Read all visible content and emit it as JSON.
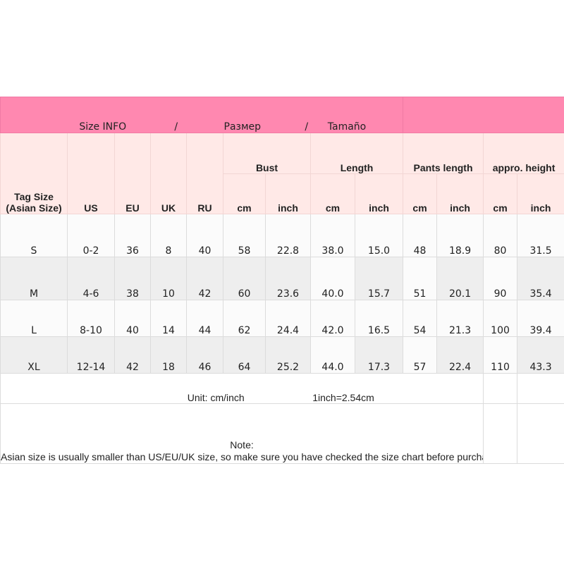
{
  "banner": {
    "title_en": "Size INFO",
    "sep1": "/",
    "title_ru": "Размер",
    "sep2": "/",
    "title_es": "Tamaño"
  },
  "header": {
    "tag_size": "Tag Size",
    "tag_size_sub": "(Asian Size)",
    "us": "US",
    "eu": "EU",
    "uk": "UK",
    "ru": "RU",
    "groups": [
      "Bust",
      "Length",
      "Pants length",
      "appro. height"
    ],
    "units": [
      "cm",
      "inch",
      "cm",
      "inch",
      "cm",
      "inch",
      "cm",
      "inch"
    ]
  },
  "rows": [
    [
      "S",
      "0-2",
      "36",
      "8",
      "40",
      "58",
      "22.8",
      "38.0",
      "15.0",
      "48",
      "18.9",
      "80",
      "31.5"
    ],
    [
      "M",
      "4-6",
      "38",
      "10",
      "42",
      "60",
      "23.6",
      "40.0",
      "15.7",
      "51",
      "20.1",
      "90",
      "35.4"
    ],
    [
      "L",
      "8-10",
      "40",
      "14",
      "44",
      "62",
      "24.4",
      "42.0",
      "16.5",
      "54",
      "21.3",
      "100",
      "39.4"
    ],
    [
      "XL",
      "12-14",
      "42",
      "18",
      "46",
      "64",
      "25.2",
      "44.0",
      "17.3",
      "57",
      "22.4",
      "110",
      "43.3"
    ]
  ],
  "footer": {
    "unit": "Unit: cm/inch",
    "conversion": "1inch=2.54cm",
    "note_label": "Note:",
    "note_text": "Asian size is usually smaller than US/EU/UK size, so make sure you have checked the size chart before purchasing.Make sure these actural size will fit you before making a order.(please allow 1-3cm differents due to manual measurement, thanks)."
  },
  "colors": {
    "banner": "#ff88b0",
    "header": "#ffe9e7",
    "row_alt": "#eeeeee"
  }
}
